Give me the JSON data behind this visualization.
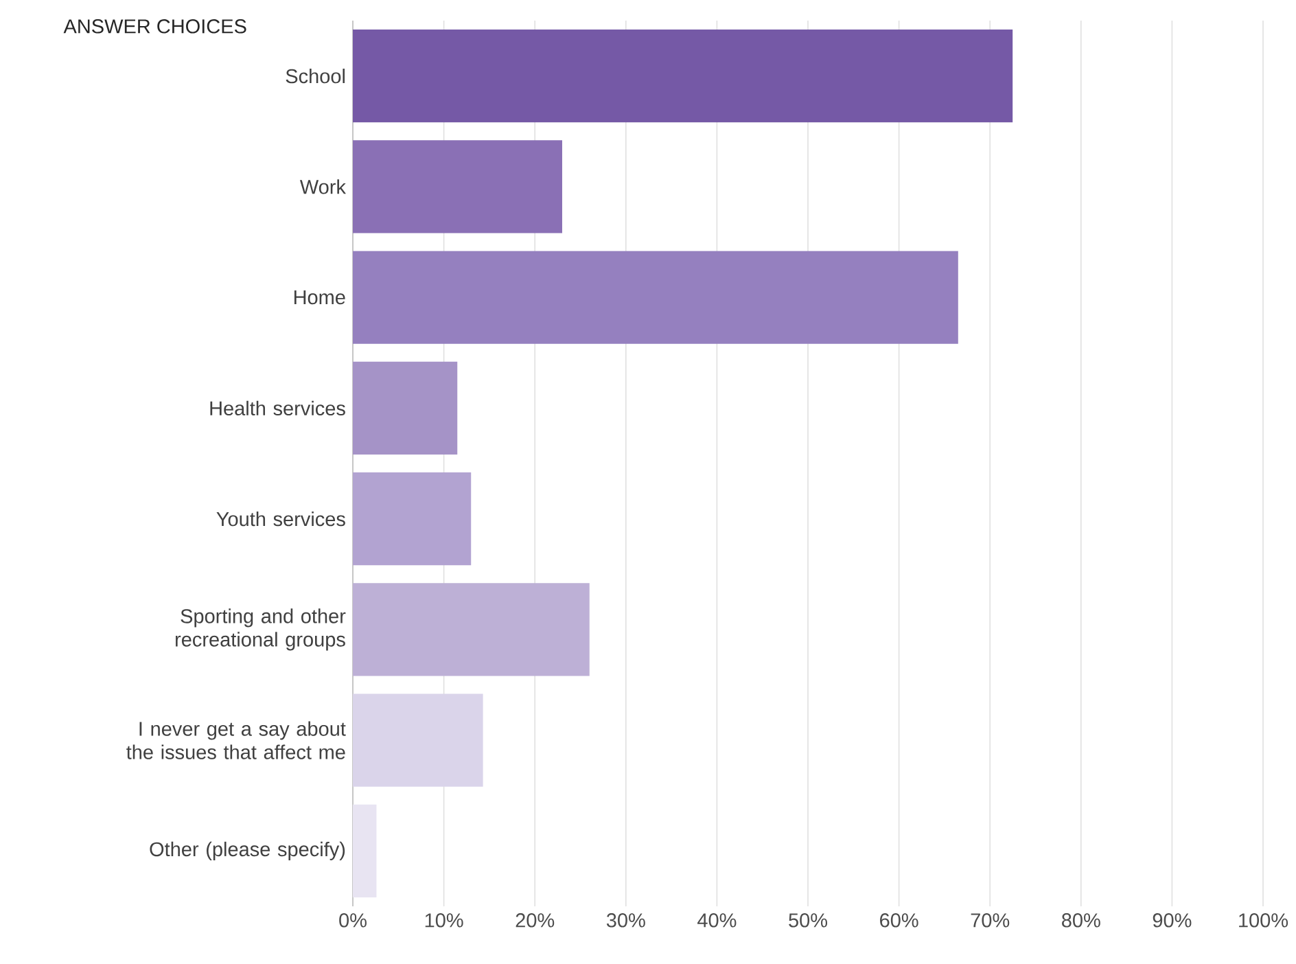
{
  "chart_data": {
    "type": "bar",
    "orientation": "horizontal",
    "ylabel": "ANSWER CHOICES",
    "categories": [
      "School",
      "Work",
      "Home",
      "Health services",
      "Youth services",
      "Sporting and other recreational groups",
      "I never get a say about the issues that affect me",
      "Other (please specify)"
    ],
    "values": [
      72.5,
      23,
      66.5,
      11.5,
      13,
      26,
      14.3,
      2.6
    ],
    "colors": [
      "#7559a6",
      "#8a70b5",
      "#9580bf",
      "#a593c7",
      "#b2a3d1",
      "#bdb0d6",
      "#dad4ea",
      "#e8e4f2"
    ],
    "xlim": [
      0,
      100
    ],
    "xticks": [
      {
        "value": 0,
        "label": "0%"
      },
      {
        "value": 10,
        "label": "10%"
      },
      {
        "value": 20,
        "label": "20%"
      },
      {
        "value": 30,
        "label": "30%"
      },
      {
        "value": 40,
        "label": "40%"
      },
      {
        "value": 50,
        "label": "50%"
      },
      {
        "value": 60,
        "label": "60%"
      },
      {
        "value": 70,
        "label": "70%"
      },
      {
        "value": 80,
        "label": "80%"
      },
      {
        "value": 90,
        "label": "90%"
      },
      {
        "value": 100,
        "label": "100%"
      }
    ],
    "grid": "x"
  }
}
